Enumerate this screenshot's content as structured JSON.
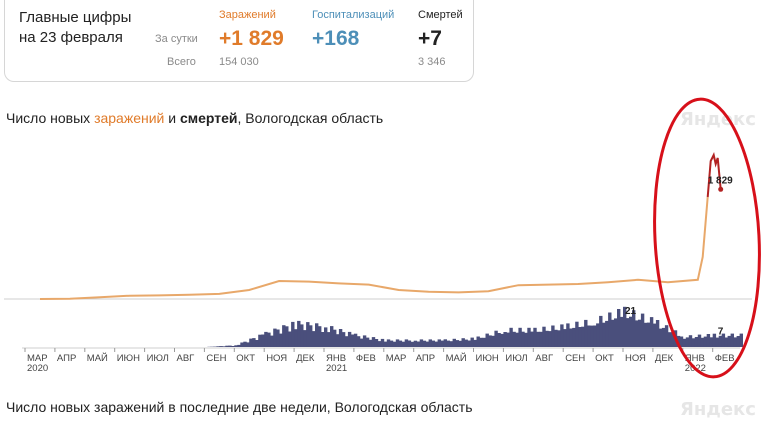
{
  "summary": {
    "title_line1": "Главные цифры",
    "title_line2": "на 23 февраля",
    "row_day_label": "За сутки",
    "row_total_label": "Всего",
    "infections": {
      "label": "Заражений",
      "day": "+1 829",
      "total": "154 030",
      "color": "#e07b2a"
    },
    "hospitalizations": {
      "label": "Госпитализаций",
      "day": "+168",
      "total": "",
      "color": "#4d8fb8"
    },
    "deaths": {
      "label": "Смертей",
      "day": "+7",
      "total": "3 346",
      "color": "#222222"
    }
  },
  "chart": {
    "title_part1": "Число новых ",
    "title_part2": "заражений",
    "title_part3": " и ",
    "title_part4": "смертей",
    "title_part5": ", Вологодская область",
    "watermark": "Яндекс",
    "bottom_title": "Число новых заражений в последние две недели, Вологодская область"
  },
  "chart_data": {
    "type": "area",
    "x_tick_labels": [
      "МАР",
      "АПР",
      "МАЙ",
      "ИЮН",
      "ИЮЛ",
      "АВГ",
      "СЕН",
      "ОКТ",
      "НОЯ",
      "ДЕК",
      "ЯНВ",
      "ФЕВ",
      "МАР",
      "АПР",
      "МАЙ",
      "ИЮН",
      "ИЮЛ",
      "АВГ",
      "СЕН",
      "ОКТ",
      "НОЯ",
      "ДЕК",
      "ЯНВ",
      "ФЕВ"
    ],
    "year_labels": [
      {
        "year": "2020",
        "month_index": 0
      },
      {
        "year": "2021",
        "month_index": 10
      },
      {
        "year": "2022",
        "month_index": 22
      }
    ],
    "series": [
      {
        "name": "заражений",
        "color": "#e8a86a",
        "latest_color": "#b22222",
        "x": [
          "2020-03",
          "2020-04",
          "2020-05",
          "2020-06",
          "2020-07",
          "2020-08",
          "2020-09",
          "2020-10",
          "2020-11",
          "2020-12",
          "2021-01",
          "2021-02",
          "2021-03",
          "2021-04",
          "2021-05",
          "2021-06",
          "2021-07",
          "2021-08",
          "2021-09",
          "2021-10",
          "2021-11",
          "2021-12",
          "2022-01",
          "2022-02"
        ],
        "values": [
          0,
          5,
          30,
          55,
          60,
          70,
          85,
          150,
          300,
          290,
          260,
          240,
          150,
          120,
          110,
          130,
          230,
          240,
          250,
          280,
          320,
          280,
          320,
          1829
        ],
        "peak_value": 2400,
        "annotation": {
          "text": "1 829",
          "value": 1829
        }
      },
      {
        "name": "смертей",
        "color": "#4a4f7c",
        "x": [
          "2020-03",
          "2020-04",
          "2020-05",
          "2020-06",
          "2020-07",
          "2020-08",
          "2020-09",
          "2020-10",
          "2020-11",
          "2020-12",
          "2021-01",
          "2021-02",
          "2021-03",
          "2021-04",
          "2021-05",
          "2021-06",
          "2021-07",
          "2021-08",
          "2021-09",
          "2021-10",
          "2021-11",
          "2021-12",
          "2022-01",
          "2022-02"
        ],
        "values": [
          0,
          0,
          0,
          0,
          0,
          0,
          0,
          1,
          8,
          14,
          12,
          7,
          4,
          4,
          4,
          5,
          10,
          10,
          12,
          15,
          21,
          15,
          6,
          7
        ],
        "annotations": [
          {
            "text": "21",
            "value": 21
          },
          {
            "text": "7",
            "value": 7
          }
        ]
      }
    ]
  }
}
